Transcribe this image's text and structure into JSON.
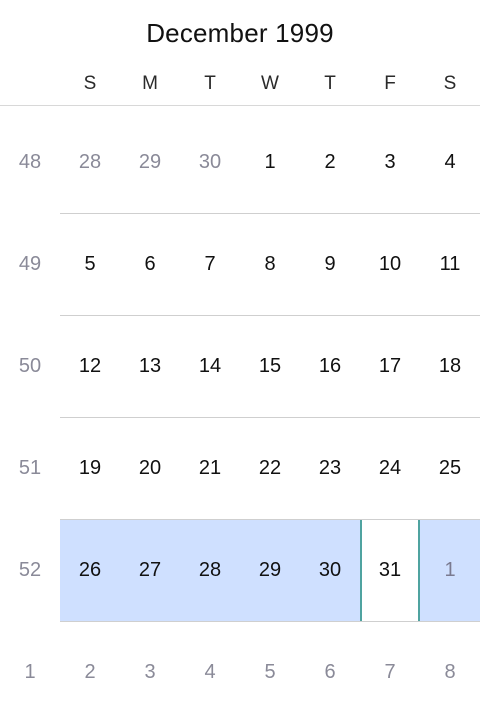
{
  "calendar": {
    "month_title": "December 1999",
    "weekdays": [
      "S",
      "M",
      "T",
      "W",
      "T",
      "F",
      "S"
    ],
    "weeks": [
      {
        "number": "48",
        "days": [
          "28",
          "29",
          "30",
          "1",
          "2",
          "3",
          "4"
        ],
        "other_month": [
          true,
          true,
          true,
          false,
          false,
          false,
          false
        ]
      },
      {
        "number": "49",
        "days": [
          "5",
          "6",
          "7",
          "8",
          "9",
          "10",
          "11"
        ],
        "other_month": [
          false,
          false,
          false,
          false,
          false,
          false,
          false
        ]
      },
      {
        "number": "50",
        "days": [
          "12",
          "13",
          "14",
          "15",
          "16",
          "17",
          "18"
        ],
        "other_month": [
          false,
          false,
          false,
          false,
          false,
          false,
          false
        ]
      },
      {
        "number": "51",
        "days": [
          "19",
          "20",
          "21",
          "22",
          "23",
          "24",
          "25"
        ],
        "other_month": [
          false,
          false,
          false,
          false,
          false,
          false,
          false
        ]
      },
      {
        "number": "52",
        "days": [
          "26",
          "27",
          "28",
          "29",
          "30",
          "31",
          "1"
        ],
        "other_month": [
          false,
          false,
          false,
          false,
          false,
          false,
          true
        ]
      },
      {
        "number": "1",
        "days": [
          "2",
          "3",
          "4",
          "5",
          "6",
          "7",
          "8"
        ],
        "other_month": [
          true,
          true,
          true,
          true,
          true,
          true,
          true
        ]
      }
    ],
    "selected_week_index": 4,
    "selected_day_index": 5
  },
  "colors": {
    "selected_week_band": "#cfe0ff",
    "selected_day_border": "#4fa3a0",
    "muted_text": "#8a8a98"
  }
}
